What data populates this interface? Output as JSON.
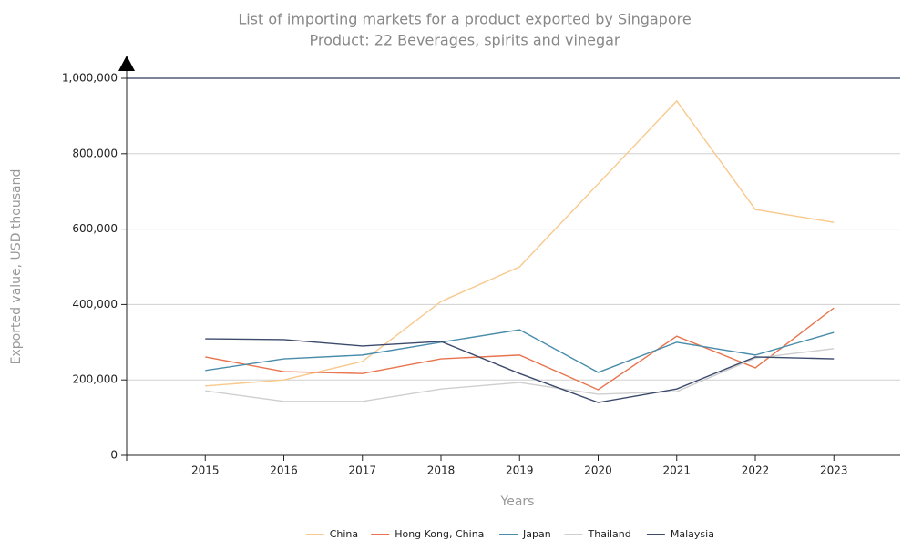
{
  "chart_data": {
    "type": "line",
    "title": "List of importing markets for a product exported by Singapore",
    "subtitle": "Product: 22 Beverages, spirits and vinegar",
    "x_label": "Years",
    "y_label": "Exported value, USD thousand",
    "categories": [
      "2015",
      "2016",
      "2017",
      "2018",
      "2019",
      "2020",
      "2021",
      "2022",
      "2023"
    ],
    "series": [
      {
        "name": "China",
        "color": "#f8c98c",
        "values": [
          184000,
          200000,
          249000,
          408000,
          500000,
          720000,
          940000,
          652000,
          618000
        ]
      },
      {
        "name": "Hong Kong, China",
        "color": "#e8744e",
        "values": [
          261000,
          222000,
          217000,
          256000,
          266000,
          174000,
          316000,
          232000,
          391000
        ]
      },
      {
        "name": "Japan",
        "color": "#4a8dab",
        "values": [
          225000,
          256000,
          266000,
          300000,
          333000,
          220000,
          300000,
          266000,
          326000
        ]
      },
      {
        "name": "Thailand",
        "color": "#cfcfcf",
        "values": [
          171000,
          143000,
          143000,
          176000,
          193000,
          162000,
          169000,
          258000,
          283000
        ]
      },
      {
        "name": "Malaysia",
        "color": "#3c4a6c",
        "values": [
          309000,
          307000,
          290000,
          302000,
          217000,
          140000,
          176000,
          261000,
          256000
        ]
      }
    ],
    "ylim": [
      0,
      1000000
    ],
    "yticks": [
      0,
      {
        "value": 200000,
        "label": "200,000"
      },
      {
        "value": 400000,
        "label": "400,000"
      },
      {
        "value": 600000,
        "label": "600,000"
      },
      {
        "value": 800000,
        "label": "800,000"
      },
      {
        "value": 1000000,
        "label": "1,000,000"
      }
    ],
    "grid": true,
    "legend": "bottom"
  }
}
